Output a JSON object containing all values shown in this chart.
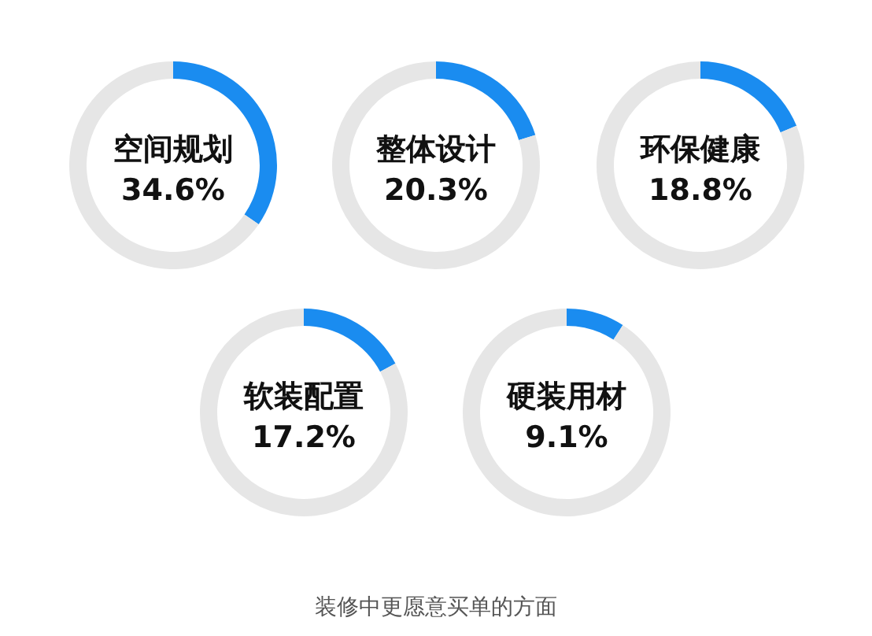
{
  "chart_data": [
    {
      "type": "donut",
      "title": "空间规划",
      "categories": [
        null,
        null
      ],
      "values": [
        34.6,
        65.4
      ],
      "colors": [
        "#1a8cf0",
        "#e6e6e6"
      ],
      "annotations": [
        "34.6%"
      ]
    },
    {
      "type": "donut",
      "title": "整体设计",
      "categories": [
        null,
        null
      ],
      "values": [
        20.3,
        79.7
      ],
      "colors": [
        "#1a8cf0",
        "#e6e6e6"
      ],
      "annotations": [
        "20.3%"
      ]
    },
    {
      "type": "donut",
      "title": "环保健康",
      "categories": [
        null,
        null
      ],
      "values": [
        18.8,
        81.2
      ],
      "colors": [
        "#1a8cf0",
        "#e6e6e6"
      ],
      "annotations": [
        "18.8%"
      ]
    },
    {
      "type": "donut",
      "title": "软装配置",
      "categories": [
        null,
        null
      ],
      "values": [
        17.2,
        82.8
      ],
      "colors": [
        "#1a8cf0",
        "#e6e6e6"
      ],
      "annotations": [
        "17.2%"
      ]
    },
    {
      "type": "donut",
      "title": "硬装用材",
      "categories": [
        null,
        null
      ],
      "values": [
        9.1,
        90.9
      ],
      "colors": [
        "#1a8cf0",
        "#e6e6e6"
      ],
      "annotations": [
        "9.1%"
      ]
    },
    {
      "type": "other",
      "annotations": [
        "装修中更愿意买单的方面"
      ]
    }
  ]
}
